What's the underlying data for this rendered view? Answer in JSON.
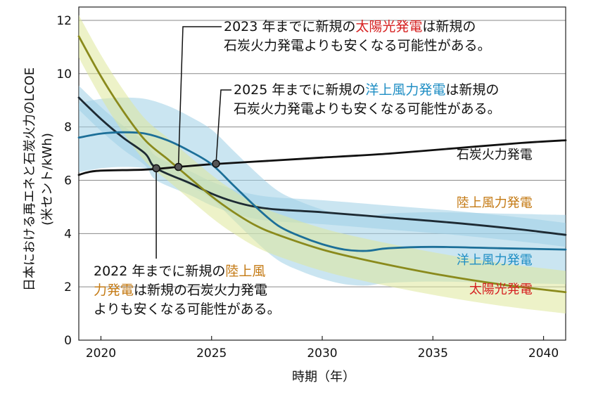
{
  "chart_data": {
    "type": "line",
    "title": "",
    "xlabel": "時期（年）",
    "ylabel": "日本における再エネと石炭火力のLCOE",
    "ylabel_unit": "(米セント/kWh)",
    "xlim": [
      2019,
      2041
    ],
    "ylim": [
      0,
      12.5
    ],
    "x_ticks": [
      "2020",
      "2025",
      "2030",
      "2035",
      "2040"
    ],
    "y_ticks": [
      "0",
      "2",
      "4",
      "6",
      "8",
      "10",
      "12"
    ],
    "grid": "horizontal",
    "series": [
      {
        "name": "石炭火力発電",
        "color": "#111111",
        "band": false,
        "points": [
          [
            2019,
            6.2
          ],
          [
            2019.8,
            6.35
          ],
          [
            2022,
            6.4
          ],
          [
            2023.5,
            6.5
          ],
          [
            2025,
            6.6
          ],
          [
            2027,
            6.7
          ],
          [
            2030,
            6.85
          ],
          [
            2033,
            7.0
          ],
          [
            2036,
            7.2
          ],
          [
            2039,
            7.4
          ],
          [
            2041,
            7.5
          ]
        ]
      },
      {
        "name": "陸上風力発電",
        "color": "#1d2a33",
        "band_color": "#9ecfe6",
        "band_width": 0.45,
        "points": [
          [
            2019,
            9.1
          ],
          [
            2020,
            8.3
          ],
          [
            2021,
            7.6
          ],
          [
            2022,
            7.0
          ],
          [
            2022.5,
            6.45
          ],
          [
            2024,
            5.9
          ],
          [
            2025,
            5.5
          ],
          [
            2026,
            5.2
          ],
          [
            2027,
            5.0
          ],
          [
            2028,
            4.9
          ],
          [
            2030,
            4.8
          ],
          [
            2033,
            4.6
          ],
          [
            2036,
            4.4
          ],
          [
            2039,
            4.15
          ],
          [
            2041,
            3.95
          ]
        ]
      },
      {
        "name": "洋上風力発電",
        "color": "#1c6f98",
        "band_color": "#9ecfe6",
        "band_width": 1.3,
        "points": [
          [
            2019,
            7.6
          ],
          [
            2020,
            7.75
          ],
          [
            2021,
            7.8
          ],
          [
            2022,
            7.75
          ],
          [
            2023,
            7.5
          ],
          [
            2024,
            7.1
          ],
          [
            2025,
            6.6
          ],
          [
            2026,
            5.8
          ],
          [
            2027,
            5.0
          ],
          [
            2028,
            4.3
          ],
          [
            2029,
            3.9
          ],
          [
            2030,
            3.6
          ],
          [
            2031,
            3.4
          ],
          [
            2032,
            3.35
          ],
          [
            2033,
            3.45
          ],
          [
            2035,
            3.5
          ],
          [
            2038,
            3.45
          ],
          [
            2041,
            3.4
          ]
        ]
      },
      {
        "name": "太陽光発電",
        "color": "#8a8a1c",
        "band_color": "#dfe79a",
        "band_width": 0.8,
        "points": [
          [
            2019,
            11.4
          ],
          [
            2020,
            9.9
          ],
          [
            2021,
            8.6
          ],
          [
            2022,
            7.5
          ],
          [
            2023,
            6.8
          ],
          [
            2023.5,
            6.45
          ],
          [
            2025,
            5.4
          ],
          [
            2026,
            4.8
          ],
          [
            2027,
            4.3
          ],
          [
            2028,
            3.95
          ],
          [
            2030,
            3.4
          ],
          [
            2032,
            3.0
          ],
          [
            2035,
            2.5
          ],
          [
            2038,
            2.1
          ],
          [
            2041,
            1.8
          ]
        ]
      }
    ],
    "markers": [
      [
        2022.5,
        6.45
      ],
      [
        2023.5,
        6.5
      ],
      [
        2025.2,
        6.62
      ]
    ],
    "series_labels": [
      {
        "text": "石炭火力発電",
        "color": "#111111",
        "x": 2039.5,
        "y": 6.8
      },
      {
        "text": "陸上風力発電",
        "color": "#c47a14",
        "x": 2039.5,
        "y": 5.0
      },
      {
        "text": "洋上風力発電",
        "color": "#1f8ec4",
        "x": 2039.5,
        "y": 2.85
      },
      {
        "text": "太陽光発電",
        "color": "#d62020",
        "x": 2039.5,
        "y": 1.75
      }
    ],
    "annotations": [
      {
        "lines": [
          [
            {
              "t": "2023 年までに新規の"
            },
            {
              "t": "太陽光発電",
              "c": "#d62020"
            },
            {
              "t": "は新規の"
            }
          ],
          [
            {
              "t": "石炭火力発電よりも安くなる可能性がある。"
            }
          ]
        ]
      },
      {
        "lines": [
          [
            {
              "t": "2025 年までに新規の"
            },
            {
              "t": "洋上風力発電",
              "c": "#1f8ec4"
            },
            {
              "t": "は新規の"
            }
          ],
          [
            {
              "t": "石炭火力発電よりも安くなる可能性がある。"
            }
          ]
        ]
      },
      {
        "lines": [
          [
            {
              "t": "2022 年までに新規の"
            },
            {
              "t": "陸上風",
              "c": "#c47a14"
            }
          ],
          [
            {
              "t": "力発電",
              "c": "#c47a14"
            },
            {
              "t": "は新規の石炭火力発電"
            }
          ],
          [
            {
              "t": "よりも安くなる可能性がある。"
            }
          ]
        ]
      }
    ]
  }
}
